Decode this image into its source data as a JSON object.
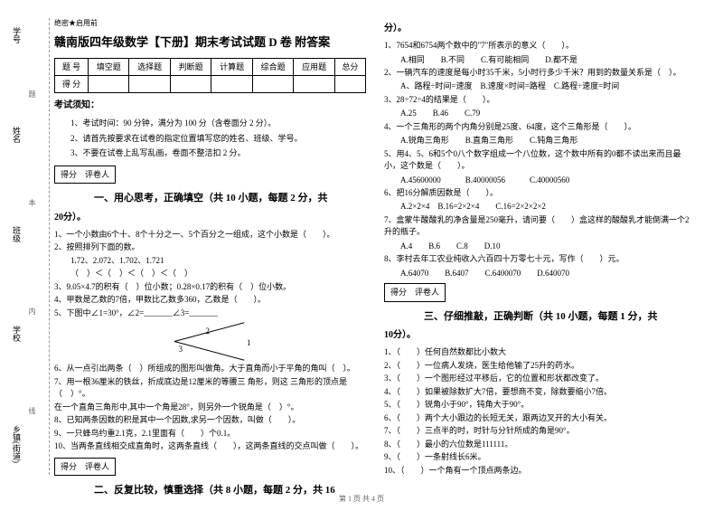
{
  "binding": {
    "labels": [
      "学号",
      "姓名",
      "班级",
      "学校",
      "乡镇(街道)"
    ],
    "marks": [
      "题",
      "本",
      "内",
      "线",
      "封"
    ]
  },
  "header": {
    "tag": "绝密★启用前",
    "title": "赣南版四年级数学【下册】期末考试试题 D 卷 附答案"
  },
  "scoreTable": {
    "row1": [
      "题 号",
      "填空题",
      "选择题",
      "判断题",
      "计算题",
      "综合题",
      "应用题",
      "总分"
    ],
    "row2": [
      "得 分",
      "",
      "",
      "",
      "",
      "",
      "",
      ""
    ]
  },
  "notice": {
    "title": "考试须知：",
    "items": [
      "1、考试时间：90 分钟，满分为 100 分（含卷面分 2 分）。",
      "2、请首先按要求在试卷的指定位置填写您的姓名、班级、学号。",
      "3、不要在试卷上乱写乱画，卷面不整洁扣 2 分。"
    ]
  },
  "gradeBox": {
    "score": "得分",
    "reviewer": "评卷人"
  },
  "part1": {
    "title": "一、用心思考，正确填空（共 10 小题，每题 2 分，共",
    "cont": "20分）。",
    "q1": "1、一个小数由6个十、8个十分之一、5个百分之一组成，这个小数是（　　）。",
    "q2": "2、按照排列下面的数。",
    "q2a": "1.72、2.072、1.702、1.721",
    "q2b": "（　）＜（　）＜（　）＜（　）",
    "q3": "3、9.05×4.7的积有（　）位小数；0.28×0.17的积有（　）位小数。",
    "q4": "4、甲数是乙数的7倍，甲数比乙数多360，乙数是（　　）。",
    "q5": "5、下图中∠1=30°，∠2=_______∠3=_______",
    "q6": "6、从一点引出两条（　）所组成的图形叫做角。大于直角而小于平角的角叫（　）。",
    "q7": "7、用一根36厘米的铁丝，折成底边是12厘米的等腰三 角形，则这 三角形的顶点是（　）°。",
    "q7a": "在一个直角三角形中,其中一个角是28°，则另外一个锐角是（　）°。",
    "q8": "8、已知两条因数的积是其中一个因数,求另一个因数，叫做（　　）。",
    "q9": "9、一只蜂鸟约重2.1克，2.1里面有（　　）个0.1。",
    "q10": "10、当两条直线相交成直角时，这两条直线（　　），这两条直线的交点叫做（　　）。"
  },
  "part2": {
    "title": "二、反复比较，慎重选择（共 8 小题，每题 2 分，共 16",
    "cont": "分）。",
    "q1": "1、7654和6754两个数中的\"7\"所表示的意义（　　）。",
    "q1o": "A.相同　　B.不同　　C.有可能相同　　D.都不是",
    "q2": "2、一辆汽车的速度是每小时35千米，5小时行多少千米？用到的数量关系是（　）。",
    "q2o": "A、路程÷时间=速度　B.速度×时间=路程　C.路程÷速度=时间",
    "q3": "3、28÷72÷4的结果是（　　）。",
    "q3o": "A.25　　B.46　　C.79",
    "q4": "4、一个三角形的两个内角分别是25度、64度，这个三角形是（　　）。",
    "q4o": "A.锐角三角形　　B.直角三角形　　C.钝角三角形",
    "q5": "5、用4、5、6和5个0八个数字组成一个八位数，这个数中所有的0都不读出来而且最小，这个数是（　　）。",
    "q5o": "A.45600000　　　B.40000056　　　C.40000560",
    "q6": "6、把16分解质因数是（　　）。",
    "q6o": "A.2×2×4　B.16=2×2×4　　C.16=2×2×2×2",
    "q7": "7、盒蒙牛酸酸乳的净含量是250毫升，请问要（　　）盒这样的酸酸乳才能倒满一个2升的瓶子。",
    "q7o": "A.4　　B.6　　C.8　　D.10",
    "q8": "8、李村去年工农业纯收入六百四十万零七十元，写作（　　）元。",
    "q8o": "A.64070　　B.6407　　C.6400070　　D.640070"
  },
  "part3": {
    "title": "三、仔细推敲，正确判断（共 10 小题，每题 1 分，共",
    "cont": "10分）。",
    "items": [
      "1、（　　）任何自然数都比小数大",
      "2、（　　）一位病人发烧，医生给他输了25升的药水。",
      "3、（　　）一个图形经过平移后，它的位置和形状都改变了。",
      "4、（　　）如果被除数扩大7倍，要想商不变，除数要缩小7倍。",
      "5、（　　）锐角小于90°，钝角大于90°。",
      "6、（　　）两个大小跟边的长短无关，跟两边叉开的大小有关。",
      "7、（　　）三点半的时，时针与分针所成的角是90°。",
      "8、（　　）最小的六位数是111111。",
      "9、（　　）一条射线长6米。",
      "10、（　　）一个角有一个顶点两条边。"
    ]
  },
  "footer": "第 1 页 共 4 页"
}
